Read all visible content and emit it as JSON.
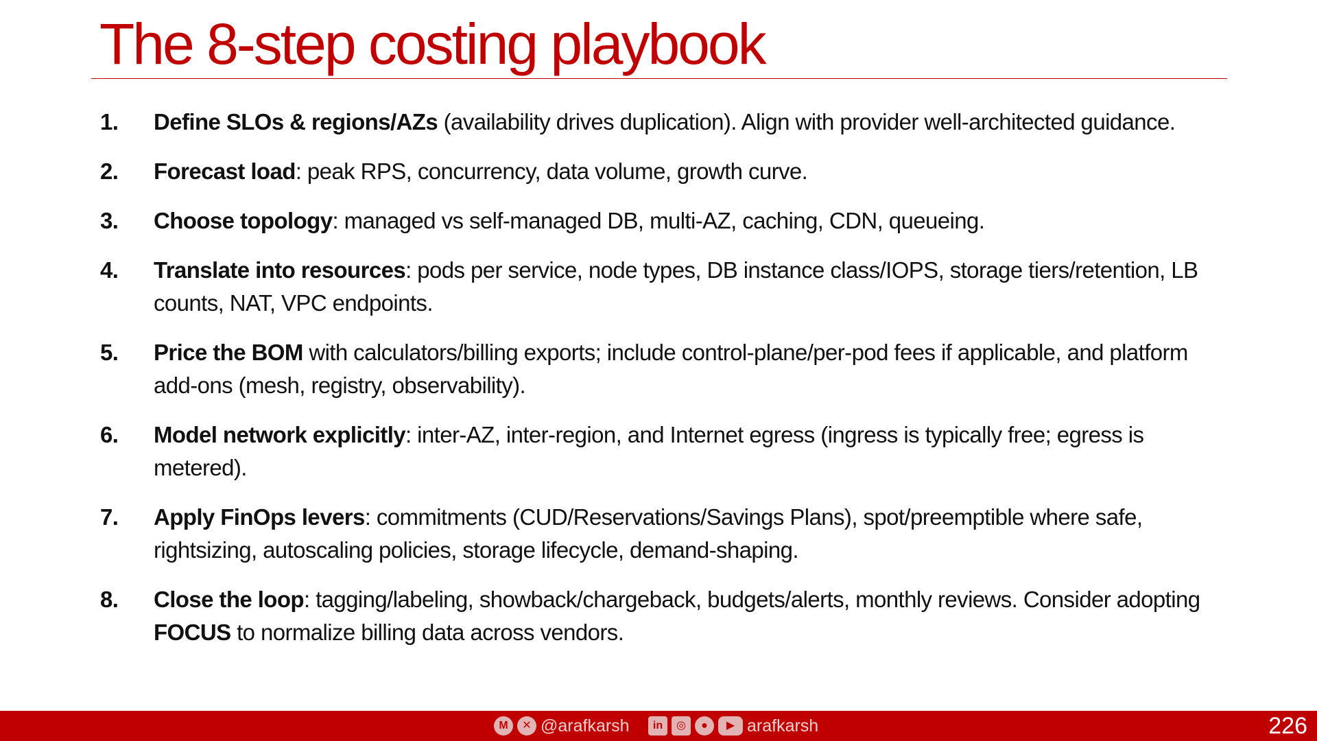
{
  "slide": {
    "title": "The 8-step costing playbook",
    "page_number": "226"
  },
  "steps": [
    {
      "number": "1.",
      "bold": "Define SLOs & regions/AZs",
      "text": " (availability drives duplication). Align with provider well-architected guidance."
    },
    {
      "number": "2.",
      "bold": "Forecast load",
      "text": ": peak RPS, concurrency, data volume, growth curve."
    },
    {
      "number": "3.",
      "bold": "Choose topology",
      "text": ": managed vs self-managed DB, multi-AZ, caching, CDN, queueing."
    },
    {
      "number": "4.",
      "bold": "Translate into resources",
      "text": ": pods per service, node types, DB instance class/IOPS, storage tiers/retention, LB counts, NAT, VPC endpoints."
    },
    {
      "number": "5.",
      "bold": "Price the BOM",
      "text": " with calculators/billing exports; include control-plane/per-pod fees if applicable, and platform add-ons (mesh, registry, observability)."
    },
    {
      "number": "6.",
      "bold": "Model network explicitly",
      "text": ": inter-AZ, inter-region, and Internet egress (ingress is typically free; egress is metered)."
    },
    {
      "number": "7.",
      "bold": "Apply FinOps levers",
      "text": ": commitments (CUD/Reservations/Savings Plans), spot/preemptible where safe, rightsizing, autoscaling policies, storage lifecycle, demand-shaping."
    },
    {
      "number": "8.",
      "bold": "Close the loop",
      "text": ": tagging/labeling, showback/chargeback, budgets/alerts, monthly reviews. Consider adopting ",
      "bold2": "FOCUS",
      "text2": " to normalize billing data across vendors."
    }
  ],
  "footer": {
    "left_handle": "@arafkarsh",
    "right_handle": "arafkarsh",
    "left_icons": [
      "medium-icon",
      "x-twitter-icon"
    ],
    "right_icons": [
      "linkedin-icon",
      "instagram-icon",
      "github-icon",
      "youtube-icon"
    ]
  },
  "colors": {
    "accent": "#c00000",
    "text": "#111111",
    "background": "#ffffff"
  }
}
